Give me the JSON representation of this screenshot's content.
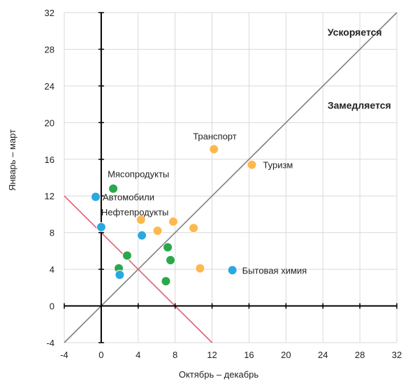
{
  "chart_data": {
    "type": "scatter",
    "xlabel": "Октябрь – декабрь",
    "ylabel": "Январь – март",
    "xlim": [
      -4,
      32
    ],
    "ylim": [
      -4,
      32
    ],
    "xticks": [
      -4,
      0,
      4,
      8,
      12,
      16,
      20,
      24,
      28,
      32
    ],
    "yticks": [
      -4,
      0,
      4,
      8,
      12,
      16,
      20,
      24,
      28,
      32
    ],
    "grid": true,
    "colors": {
      "orange": "#FDB94D",
      "green": "#2BA84A",
      "blue": "#2AA8E0",
      "diagonal": "#808080",
      "red_line": "#E06070"
    },
    "annotations": [
      {
        "text": "Ускоряется",
        "x": 24.5,
        "y": 29.5
      },
      {
        "text": "Замедляется",
        "x": 24.5,
        "y": 21.5
      }
    ],
    "points": [
      {
        "x": 12.2,
        "y": 17.1,
        "color": "orange",
        "label": "Транспорт"
      },
      {
        "x": 16.3,
        "y": 15.4,
        "color": "orange",
        "label": "Туризм"
      },
      {
        "x": 4.3,
        "y": 9.4,
        "color": "orange",
        "label": ""
      },
      {
        "x": 6.1,
        "y": 8.2,
        "color": "orange",
        "label": ""
      },
      {
        "x": 7.8,
        "y": 9.2,
        "color": "orange",
        "label": ""
      },
      {
        "x": 10.0,
        "y": 8.5,
        "color": "orange",
        "label": ""
      },
      {
        "x": 10.7,
        "y": 4.1,
        "color": "orange",
        "label": ""
      },
      {
        "x": 1.3,
        "y": 12.8,
        "color": "green",
        "label": "Мясопродукты"
      },
      {
        "x": 2.8,
        "y": 5.5,
        "color": "green",
        "label": ""
      },
      {
        "x": 1.9,
        "y": 4.1,
        "color": "green",
        "label": ""
      },
      {
        "x": 7.2,
        "y": 6.4,
        "color": "green",
        "label": ""
      },
      {
        "x": 7.5,
        "y": 5.0,
        "color": "green",
        "label": ""
      },
      {
        "x": 7.0,
        "y": 2.7,
        "color": "green",
        "label": ""
      },
      {
        "x": -0.6,
        "y": 11.9,
        "color": "blue",
        "label": "Автомобили"
      },
      {
        "x": 0.0,
        "y": 8.6,
        "color": "blue",
        "label": "Нефтепродукты"
      },
      {
        "x": 4.4,
        "y": 7.7,
        "color": "blue",
        "label": ""
      },
      {
        "x": 14.2,
        "y": 3.9,
        "color": "blue",
        "label": "Бытовая химия"
      },
      {
        "x": 2.0,
        "y": 3.4,
        "color": "blue",
        "label": ""
      }
    ]
  }
}
